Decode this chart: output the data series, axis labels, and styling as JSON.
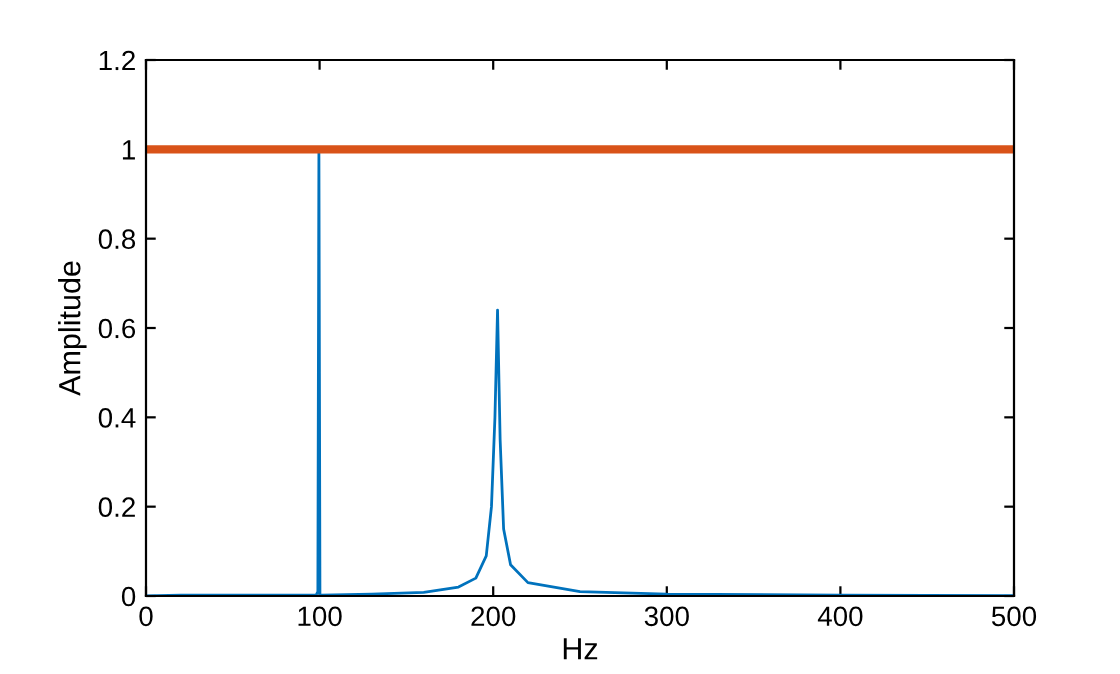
{
  "chart_data": {
    "type": "line",
    "xlabel": "Hz",
    "ylabel": "Amplitude",
    "xlim": [
      0,
      500
    ],
    "xticks": [
      0,
      100,
      200,
      300,
      400,
      500
    ],
    "ylim": [
      0,
      1.2
    ],
    "yticks": [
      0,
      0.2,
      0.4,
      0.6,
      0.8,
      1,
      1.2
    ],
    "grid": false,
    "legend": false,
    "series": [
      {
        "color": "#0072bd",
        "x": [
          0,
          20,
          60,
          98,
          99,
          99.6,
          100.2,
          101,
          130,
          160,
          180,
          190,
          196,
          199,
          201,
          202.5,
          204,
          206,
          210,
          220,
          250,
          300,
          400,
          500
        ],
        "values": [
          0,
          0.002,
          0.002,
          0.002,
          0.01,
          1.0,
          0.0,
          0.002,
          0.004,
          0.008,
          0.02,
          0.04,
          0.09,
          0.2,
          0.4,
          0.64,
          0.35,
          0.15,
          0.07,
          0.03,
          0.01,
          0.004,
          0.002,
          0.001
        ]
      },
      {
        "color": "#d95319",
        "x": [
          0,
          500
        ],
        "values": [
          1,
          1
        ]
      }
    ]
  }
}
